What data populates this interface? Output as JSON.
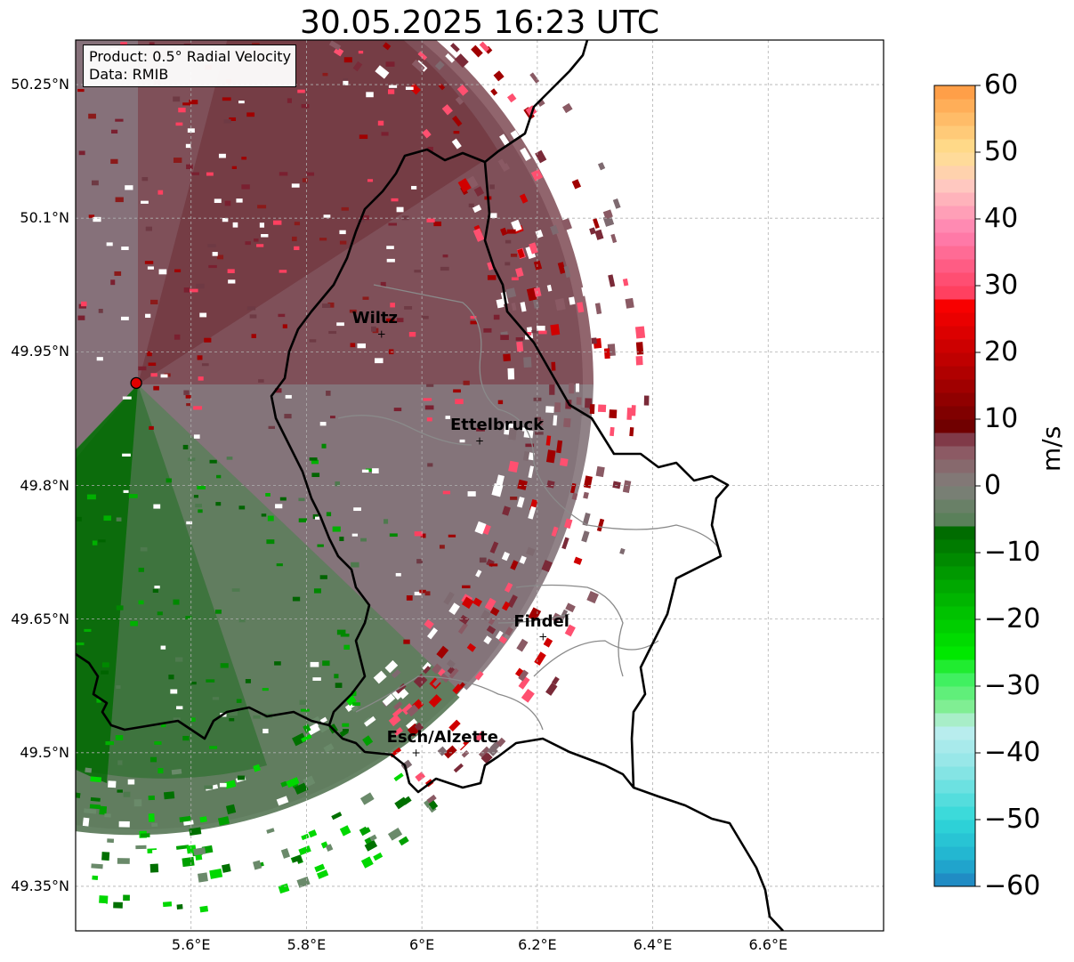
{
  "title": "30.05.2025 16:23 UTC",
  "info_box": {
    "product": "Product: 0.5° Radial Velocity",
    "data": "Data: RMIB"
  },
  "axes": {
    "lat_ticks": [
      "50.25°N",
      "50.1°N",
      "49.95°N",
      "49.8°N",
      "49.65°N",
      "49.5°N",
      "49.35°N"
    ],
    "lon_ticks": [
      "5.6°E",
      "5.8°E",
      "6°E",
      "6.2°E",
      "6.4°E",
      "6.6°E"
    ],
    "lat_values": [
      50.25,
      50.1,
      49.95,
      49.8,
      49.65,
      49.5,
      49.35
    ],
    "lon_values": [
      5.6,
      5.8,
      6.0,
      6.2,
      6.4,
      6.6
    ],
    "lat_range": [
      49.3,
      50.3
    ],
    "lon_range": [
      5.4,
      6.8
    ],
    "grid": true
  },
  "cities": [
    {
      "name": "Wiltz",
      "lat": 49.97,
      "lon": 5.93
    },
    {
      "name": "Ettelbruck",
      "lat": 49.85,
      "lon": 6.1
    },
    {
      "name": "Findel",
      "lat": 49.63,
      "lon": 6.21
    },
    {
      "name": "Esch/Alzette",
      "lat": 49.5,
      "lon": 5.99
    }
  ],
  "radar_site": {
    "lat": 49.915,
    "lon": 5.505,
    "color": "#e00000"
  },
  "colorbar": {
    "label": "m/s",
    "min": -60,
    "max": 60,
    "ticks": [
      "60",
      "50",
      "40",
      "30",
      "20",
      "10",
      "0",
      "−10",
      "−20",
      "−30",
      "−40",
      "−50",
      "−60"
    ],
    "tick_values": [
      60,
      50,
      40,
      30,
      20,
      10,
      0,
      -10,
      -20,
      -30,
      -40,
      -50,
      -60
    ],
    "stops": [
      {
        "v": -60,
        "c": "#2080c0"
      },
      {
        "v": -56,
        "c": "#20b0d0"
      },
      {
        "v": -50,
        "c": "#30d8d8"
      },
      {
        "v": -42,
        "c": "#90e6e6"
      },
      {
        "v": -36,
        "c": "#c0eef0"
      },
      {
        "v": -34,
        "c": "#90eea0"
      },
      {
        "v": -29,
        "c": "#40f060"
      },
      {
        "v": -25,
        "c": "#00e800"
      },
      {
        "v": -15,
        "c": "#00a800"
      },
      {
        "v": -6,
        "c": "#006400"
      },
      {
        "v": -5,
        "c": "#5a805a"
      },
      {
        "v": 0,
        "c": "#7f7f7a"
      },
      {
        "v": 5,
        "c": "#8c5a64"
      },
      {
        "v": 8,
        "c": "#7a2a3a"
      },
      {
        "v": 9,
        "c": "#700000"
      },
      {
        "v": 18,
        "c": "#b80000"
      },
      {
        "v": 28,
        "c": "#ff0000"
      },
      {
        "v": 29,
        "c": "#ff4060"
      },
      {
        "v": 38,
        "c": "#ff80b0"
      },
      {
        "v": 45,
        "c": "#ffc8c0"
      },
      {
        "v": 50,
        "c": "#ffe090"
      },
      {
        "v": 60,
        "c": "#ff9840"
      }
    ]
  },
  "colors": {
    "inbound_strong": "#007000",
    "inbound_weak": "#5e7e5e",
    "zero": "#827a7a",
    "outbound_weak": "#8a5a64",
    "outbound_strong": "#7a2830"
  }
}
